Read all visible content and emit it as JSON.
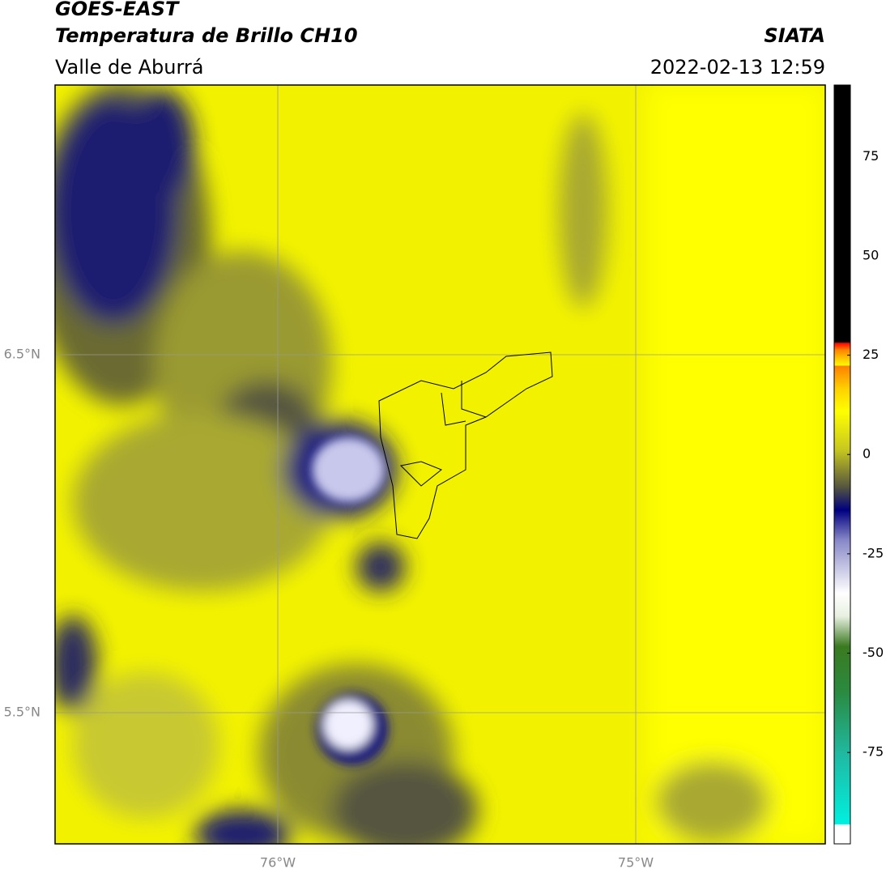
{
  "header": {
    "title": "GOES-EAST",
    "subtitle": "Temperatura de Brillo CH10",
    "region": "Valle de Aburrá",
    "source": "SIATA",
    "datetime": "2022-02-13 12:59"
  },
  "map": {
    "lat_labels": [
      "6.5°N",
      "5.5°N"
    ],
    "lon_labels": [
      "76°W",
      "75°W"
    ]
  },
  "colorbar": {
    "range": [
      -98,
      93
    ],
    "ticks": [
      75,
      50,
      25,
      0,
      -25,
      -50,
      -75
    ]
  }
}
